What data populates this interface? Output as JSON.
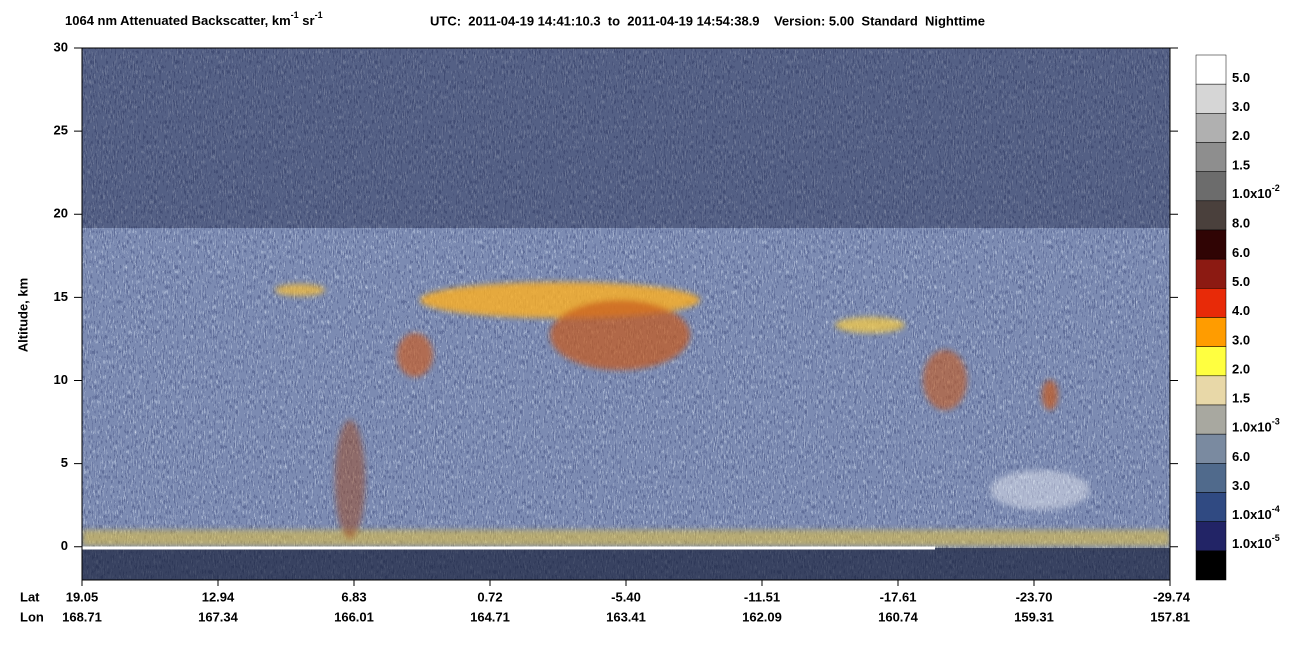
{
  "chart_data": {
    "type": "curtain",
    "title": [
      "1064 nm Attenuated Backscatter, km",
      "-1",
      " sr",
      "-1"
    ],
    "subtitle": "UTC:  2011-04-19 14:41:10.3  to  2011-04-19 14:54:38.9    Version: 5.00  Standard  Nighttime",
    "y_label": "Altitude, km",
    "ylim": [
      -2,
      30
    ],
    "yticks": [
      0,
      5,
      10,
      15,
      20,
      25,
      30
    ],
    "row_labels": [
      "Lat",
      "Lon"
    ],
    "lat": [
      "19.05",
      "12.94",
      "6.83",
      "0.72",
      "-5.40",
      "-11.51",
      "-17.61",
      "-23.70",
      "-29.74"
    ],
    "lon": [
      "168.71",
      "167.34",
      "166.01",
      "164.71",
      "163.41",
      "162.09",
      "160.74",
      "159.31",
      "157.81"
    ],
    "colorbar": {
      "colors": [
        "#ffffff",
        "#d6d6d6",
        "#b0b0b0",
        "#8e8e8e",
        "#6c6c6c",
        "#4a403c",
        "#300404",
        "#8c1a12",
        "#e82a08",
        "#ff9c00",
        "#ffff40",
        "#e8d8a8",
        "#a8a8a0",
        "#7a8aa0",
        "#506a8c",
        "#304a82",
        "#222466",
        "#000000"
      ],
      "labels": [
        "5.0",
        "3.0",
        "2.0",
        "1.5",
        {
          "text": "1.0x10",
          "sup": "-2"
        },
        "8.0",
        "6.0",
        "5.0",
        "4.0",
        "3.0",
        "2.0",
        "1.5",
        {
          "text": "1.0x10",
          "sup": "-3"
        },
        "6.0",
        "3.0",
        {
          "text": "1.0x10",
          "sup": "-4"
        },
        {
          "text": "1.0x10",
          "sup": "-5"
        }
      ]
    }
  }
}
